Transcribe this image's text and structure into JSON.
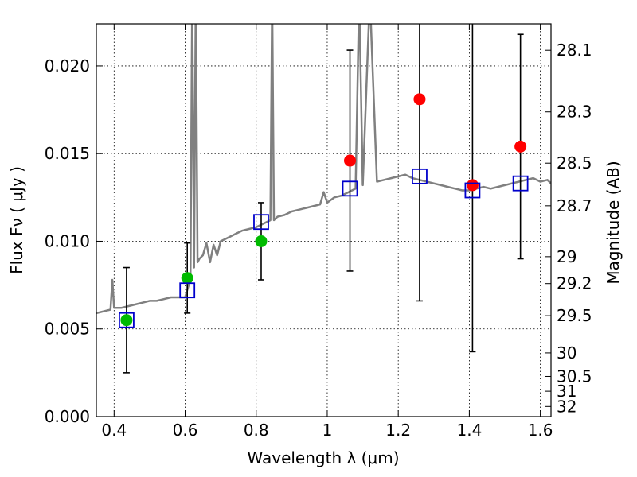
{
  "chart_data": {
    "type": "scatter",
    "xlabel": "Wavelength  λ (μm)",
    "ylabel": "Flux  Fν  ( μJy )",
    "y2label": "Magnitude (AB)",
    "xlim": [
      0.35,
      1.63
    ],
    "ylim": [
      0.0,
      0.0224
    ],
    "grid": true,
    "x_ticks": [
      "0.4",
      "0.6",
      "0.8",
      "1",
      "1.2",
      "1.4",
      "1.6"
    ],
    "x_tick_values": [
      0.4,
      0.6,
      0.8,
      1.0,
      1.2,
      1.4,
      1.6
    ],
    "y_ticks": [
      "0.000",
      "0.005",
      "0.010",
      "0.015",
      "0.020"
    ],
    "y_tick_values": [
      0.0,
      0.005,
      0.01,
      0.015,
      0.02
    ],
    "mag_ticks": [
      {
        "label": "28.1",
        "mag": 28.1
      },
      {
        "label": "28.3",
        "mag": 28.3
      },
      {
        "label": "28.5",
        "mag": 28.5
      },
      {
        "label": "28.7",
        "mag": 28.7
      },
      {
        "label": "29",
        "mag": 29.0
      },
      {
        "label": "29.2",
        "mag": 29.2
      },
      {
        "label": "29.5",
        "mag": 29.5
      },
      {
        "label": "30",
        "mag": 30.0
      },
      {
        "label": "30.5",
        "mag": 30.5
      },
      {
        "label": "31",
        "mag": 31.0
      },
      {
        "label": "32",
        "mag": 32.0
      }
    ],
    "colors": {
      "spectrum": "#808080",
      "observed_green": "#00bb00",
      "observed_red": "#ff0000",
      "model": "#0000cc",
      "errorbar": "#000000"
    },
    "spectrum": {
      "x": [
        0.35,
        0.37,
        0.39,
        0.395,
        0.4,
        0.42,
        0.44,
        0.46,
        0.48,
        0.5,
        0.52,
        0.54,
        0.56,
        0.58,
        0.6,
        0.61,
        0.615,
        0.62,
        0.625,
        0.63,
        0.635,
        0.64,
        0.65,
        0.66,
        0.67,
        0.68,
        0.69,
        0.7,
        0.72,
        0.74,
        0.76,
        0.78,
        0.8,
        0.82,
        0.84,
        0.845,
        0.85,
        0.86,
        0.88,
        0.9,
        0.92,
        0.94,
        0.96,
        0.98,
        0.99,
        1.0,
        1.02,
        1.04,
        1.06,
        1.08,
        1.09,
        1.1,
        1.12,
        1.14,
        1.16,
        1.18,
        1.2,
        1.22,
        1.24,
        1.26,
        1.28,
        1.3,
        1.32,
        1.34,
        1.36,
        1.38,
        1.4,
        1.42,
        1.44,
        1.46,
        1.48,
        1.5,
        1.52,
        1.54,
        1.56,
        1.58,
        1.6,
        1.62,
        1.63
      ],
      "y": [
        0.0059,
        0.006,
        0.0061,
        0.0078,
        0.0062,
        0.0062,
        0.0063,
        0.0064,
        0.0065,
        0.0066,
        0.0066,
        0.0067,
        0.0068,
        0.0068,
        0.0068,
        0.0075,
        0.008,
        0.024,
        0.0085,
        0.024,
        0.0088,
        0.009,
        0.0092,
        0.0099,
        0.0088,
        0.0098,
        0.0092,
        0.01,
        0.0102,
        0.0104,
        0.0106,
        0.0107,
        0.0108,
        0.011,
        0.0112,
        0.024,
        0.0112,
        0.0114,
        0.0115,
        0.0117,
        0.0118,
        0.0119,
        0.012,
        0.0121,
        0.0128,
        0.0122,
        0.0125,
        0.0126,
        0.0128,
        0.013,
        0.024,
        0.0132,
        0.024,
        0.0134,
        0.0135,
        0.0136,
        0.0137,
        0.0138,
        0.0136,
        0.0135,
        0.0134,
        0.0133,
        0.0132,
        0.0131,
        0.013,
        0.0129,
        0.0129,
        0.013,
        0.0131,
        0.013,
        0.0131,
        0.0132,
        0.0133,
        0.0134,
        0.0135,
        0.0136,
        0.0134,
        0.0135,
        0.0133
      ]
    },
    "observed": [
      {
        "x": 0.435,
        "y": 0.0055,
        "err": 0.003,
        "color": "green"
      },
      {
        "x": 0.606,
        "y": 0.0079,
        "err": 0.002,
        "color": "green"
      },
      {
        "x": 0.814,
        "y": 0.01,
        "err": 0.0022,
        "color": "green"
      },
      {
        "x": 1.064,
        "y": 0.0146,
        "err": 0.0063,
        "color": "red"
      },
      {
        "x": 1.26,
        "y": 0.0181,
        "err": 0.0115,
        "color": "red"
      },
      {
        "x": 1.409,
        "y": 0.0132,
        "err": 0.0095,
        "color": "red"
      },
      {
        "x": 1.544,
        "y": 0.0154,
        "err": 0.0064,
        "color": "red"
      }
    ],
    "model": [
      {
        "x": 0.435,
        "y": 0.0055
      },
      {
        "x": 0.606,
        "y": 0.0072
      },
      {
        "x": 0.814,
        "y": 0.0111
      },
      {
        "x": 1.064,
        "y": 0.013
      },
      {
        "x": 1.26,
        "y": 0.0137
      },
      {
        "x": 1.409,
        "y": 0.0129
      },
      {
        "x": 1.544,
        "y": 0.0133
      }
    ]
  }
}
